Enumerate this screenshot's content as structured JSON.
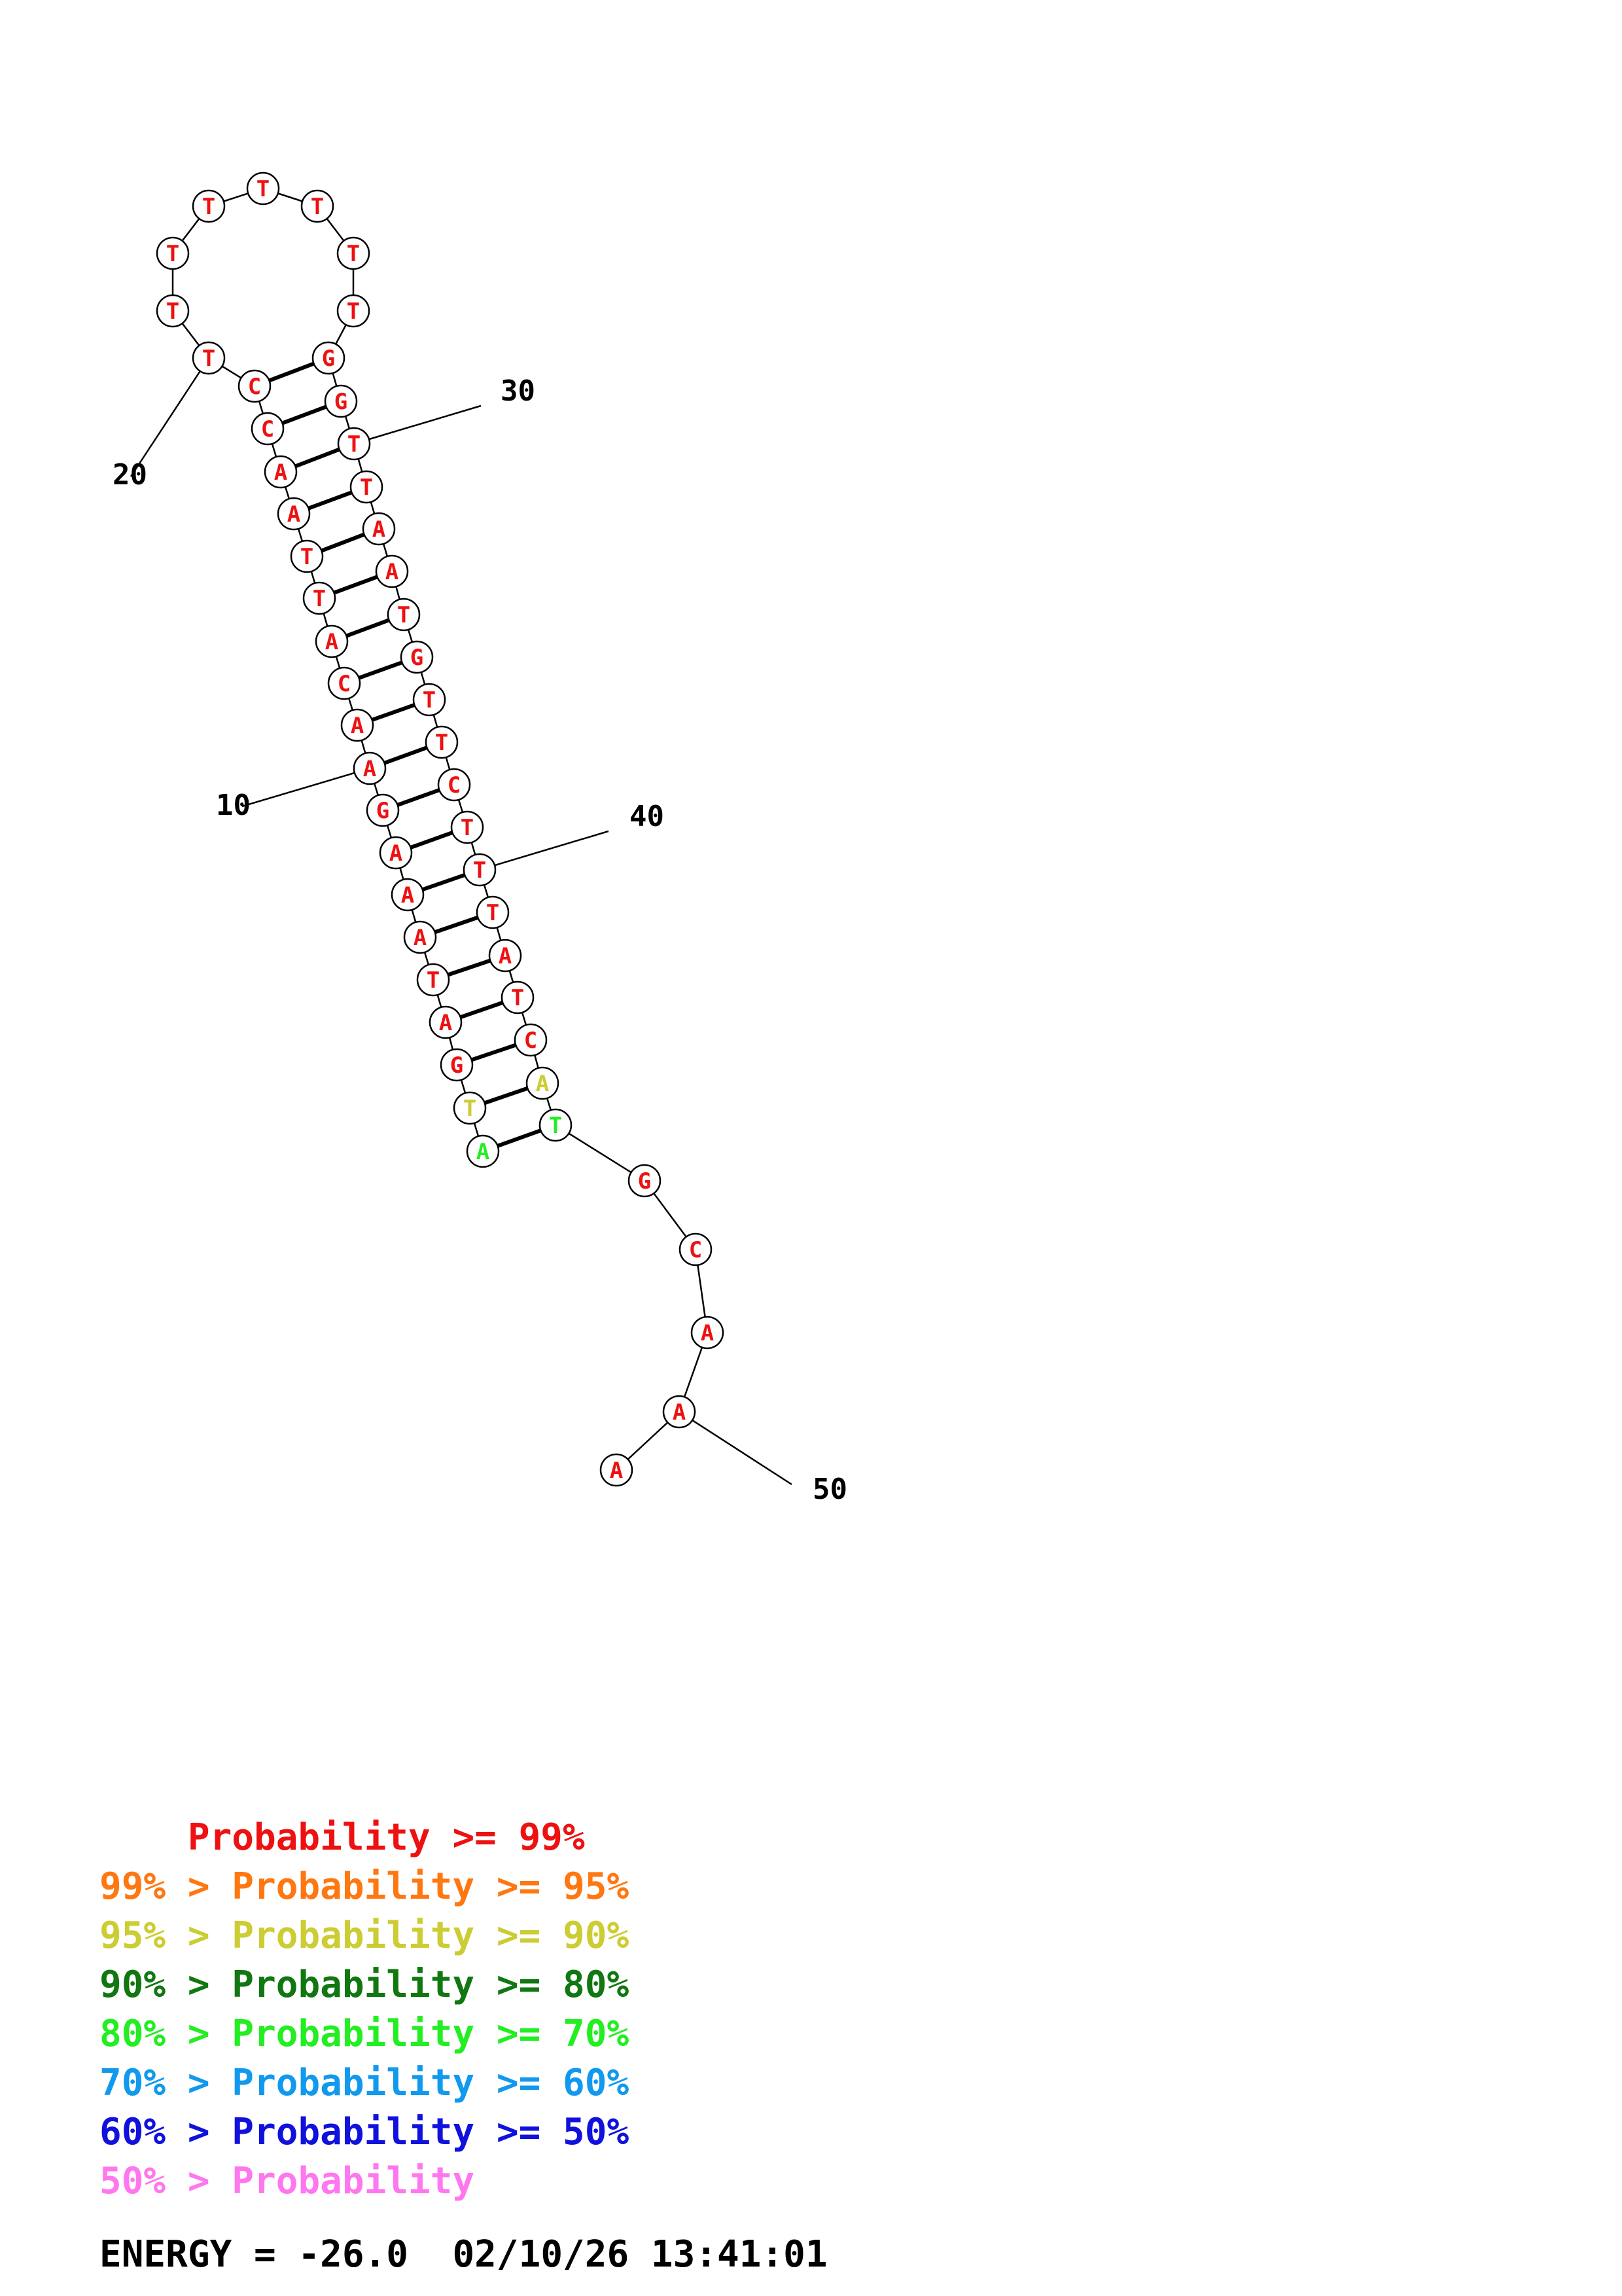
{
  "structure": {
    "bases": [
      {
        "n": 1,
        "letter": "A",
        "color": "#22ee22"
      },
      {
        "n": 2,
        "letter": "T",
        "color": "#cccc33"
      },
      {
        "n": 3,
        "letter": "G",
        "color": "#ee1111"
      },
      {
        "n": 4,
        "letter": "A",
        "color": "#ee1111"
      },
      {
        "n": 5,
        "letter": "T",
        "color": "#ee1111"
      },
      {
        "n": 6,
        "letter": "A",
        "color": "#ee1111"
      },
      {
        "n": 7,
        "letter": "A",
        "color": "#ee1111"
      },
      {
        "n": 8,
        "letter": "A",
        "color": "#ee1111"
      },
      {
        "n": 9,
        "letter": "G",
        "color": "#ee1111"
      },
      {
        "n": 10,
        "letter": "A",
        "color": "#ee1111"
      },
      {
        "n": 11,
        "letter": "A",
        "color": "#ee1111"
      },
      {
        "n": 12,
        "letter": "C",
        "color": "#ee1111"
      },
      {
        "n": 13,
        "letter": "A",
        "color": "#ee1111"
      },
      {
        "n": 14,
        "letter": "T",
        "color": "#ee1111"
      },
      {
        "n": 15,
        "letter": "T",
        "color": "#ee1111"
      },
      {
        "n": 16,
        "letter": "A",
        "color": "#ee1111"
      },
      {
        "n": 17,
        "letter": "A",
        "color": "#ee1111"
      },
      {
        "n": 18,
        "letter": "C",
        "color": "#ee1111"
      },
      {
        "n": 19,
        "letter": "C",
        "color": "#ee1111"
      },
      {
        "n": 20,
        "letter": "T",
        "color": "#ee1111"
      },
      {
        "n": 21,
        "letter": "T",
        "color": "#ee1111"
      },
      {
        "n": 22,
        "letter": "T",
        "color": "#ee1111"
      },
      {
        "n": 23,
        "letter": "T",
        "color": "#ee1111"
      },
      {
        "n": 24,
        "letter": "T",
        "color": "#ee1111"
      },
      {
        "n": 25,
        "letter": "T",
        "color": "#ee1111"
      },
      {
        "n": 26,
        "letter": "T",
        "color": "#ee1111"
      },
      {
        "n": 27,
        "letter": "T",
        "color": "#ee1111"
      },
      {
        "n": 28,
        "letter": "G",
        "color": "#ee1111"
      },
      {
        "n": 29,
        "letter": "G",
        "color": "#ee1111"
      },
      {
        "n": 30,
        "letter": "T",
        "color": "#ee1111"
      },
      {
        "n": 31,
        "letter": "T",
        "color": "#ee1111"
      },
      {
        "n": 32,
        "letter": "A",
        "color": "#ee1111"
      },
      {
        "n": 33,
        "letter": "A",
        "color": "#ee1111"
      },
      {
        "n": 34,
        "letter": "T",
        "color": "#ee1111"
      },
      {
        "n": 35,
        "letter": "G",
        "color": "#ee1111"
      },
      {
        "n": 36,
        "letter": "T",
        "color": "#ee1111"
      },
      {
        "n": 37,
        "letter": "T",
        "color": "#ee1111"
      },
      {
        "n": 38,
        "letter": "C",
        "color": "#ee1111"
      },
      {
        "n": 39,
        "letter": "T",
        "color": "#ee1111"
      },
      {
        "n": 40,
        "letter": "T",
        "color": "#ee1111"
      },
      {
        "n": 41,
        "letter": "T",
        "color": "#ee1111"
      },
      {
        "n": 42,
        "letter": "A",
        "color": "#ee1111"
      },
      {
        "n": 43,
        "letter": "T",
        "color": "#ee1111"
      },
      {
        "n": 44,
        "letter": "C",
        "color": "#ee1111"
      },
      {
        "n": 45,
        "letter": "A",
        "color": "#cccc33"
      },
      {
        "n": 46,
        "letter": "T",
        "color": "#22ee22"
      },
      {
        "n": 47,
        "letter": "G",
        "color": "#ee1111"
      },
      {
        "n": 48,
        "letter": "C",
        "color": "#ee1111"
      },
      {
        "n": 49,
        "letter": "A",
        "color": "#ee1111"
      },
      {
        "n": 50,
        "letter": "A",
        "color": "#ee1111"
      },
      {
        "n": 51,
        "letter": "A",
        "color": "#ee1111"
      }
    ],
    "pairs": [
      [
        1,
        46
      ],
      [
        2,
        45
      ],
      [
        3,
        44
      ],
      [
        4,
        43
      ],
      [
        5,
        42
      ],
      [
        6,
        41
      ],
      [
        7,
        40
      ],
      [
        8,
        39
      ],
      [
        9,
        38
      ],
      [
        10,
        37
      ],
      [
        11,
        36
      ],
      [
        12,
        35
      ],
      [
        13,
        34
      ],
      [
        14,
        33
      ],
      [
        15,
        32
      ],
      [
        16,
        31
      ],
      [
        17,
        30
      ],
      [
        18,
        29
      ],
      [
        19,
        28
      ]
    ],
    "index_labels": [
      {
        "base": 10,
        "text": "10"
      },
      {
        "base": 20,
        "text": "20"
      },
      {
        "base": 30,
        "text": "30"
      },
      {
        "base": 40,
        "text": "40"
      },
      {
        "base": 50,
        "text": "50"
      }
    ]
  },
  "legend": [
    {
      "prefix": "    ",
      "text": "Probability >= 99%",
      "color": "#ee1111"
    },
    {
      "prefix": "99% > ",
      "text": "Probability >= 95%",
      "color": "#ff7711"
    },
    {
      "prefix": "95% > ",
      "text": "Probability >= 90%",
      "color": "#cccc33"
    },
    {
      "prefix": "90% > ",
      "text": "Probability >= 80%",
      "color": "#117711"
    },
    {
      "prefix": "80% > ",
      "text": "Probability >= 70%",
      "color": "#22ee22"
    },
    {
      "prefix": "70% > ",
      "text": "Probability >= 60%",
      "color": "#1199ee"
    },
    {
      "prefix": "60% > ",
      "text": "Probability >= 50%",
      "color": "#1111dd"
    },
    {
      "prefix": "50% > ",
      "text": "Probability",
      "color": "#ff77ee"
    }
  ],
  "footer": {
    "energy": "ENERGY = -26.0",
    "timestamp": "02/10/26 13:41:01"
  }
}
